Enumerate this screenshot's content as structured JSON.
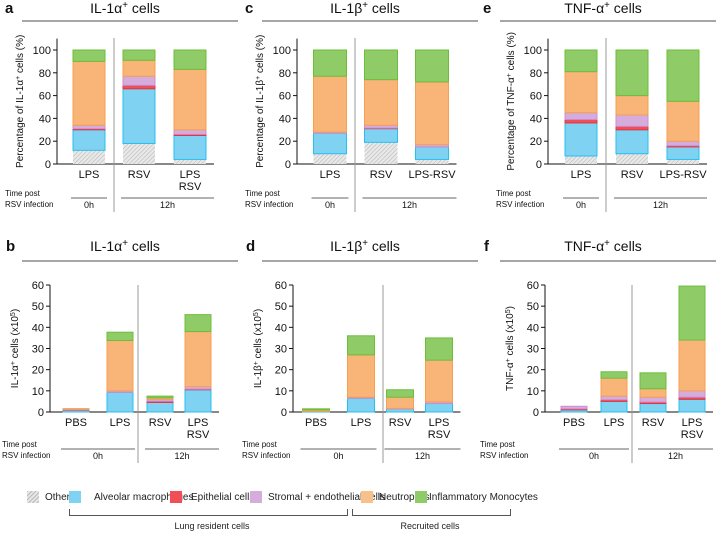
{
  "legend": {
    "items": [
      {
        "label": "Other",
        "color": "#d8d8d8"
      },
      {
        "label": "Alveolar macrophages",
        "color": "#7fd2f2"
      },
      {
        "label": "Epithelial cells",
        "color": "#ef4f55"
      },
      {
        "label": "Stromal + endothelial cells",
        "color": "#d6acdd"
      },
      {
        "label": "Neutrophils",
        "color": "#f9b477"
      },
      {
        "label": "Inflammatory Monocytes",
        "color": "#8fcc68"
      }
    ],
    "groups": [
      "Lung resident cells",
      "Recruited cells"
    ]
  },
  "stroke_colors": [
    "#b8b8b8",
    "#27bfee",
    "#e8343d",
    "#c68fd0",
    "#f6a052",
    "#6dbd3a"
  ],
  "time_labels": {
    "line1": "Time post",
    "line2": "RSV infection",
    "t0": "0h",
    "t12": "12h"
  },
  "chart_data": [
    {
      "panel": "a",
      "type": "bar",
      "stacked": true,
      "title": [
        {
          "t": "IL-1α"
        },
        {
          "t": "+",
          "sup": true
        },
        {
          "t": " cells"
        }
      ],
      "ylabel": [
        {
          "t": "Percentage of IL-1α"
        },
        {
          "t": "+",
          "sup": true
        },
        {
          "t": " cells (%)"
        }
      ],
      "categories": [
        "LPS",
        "RSV",
        "LPS RSV"
      ],
      "time_groups": [
        "0h",
        "12h",
        "12h"
      ],
      "ylim": [
        0,
        110
      ],
      "yticks": [
        0,
        20,
        40,
        60,
        80,
        100
      ],
      "series": [
        {
          "name": "Other",
          "values": [
            12,
            18,
            4
          ]
        },
        {
          "name": "Alveolar macrophages",
          "values": [
            18,
            48,
            21
          ]
        },
        {
          "name": "Epithelial cells",
          "values": [
            1,
            3,
            1
          ]
        },
        {
          "name": "Stromal + endothelial cells",
          "values": [
            3,
            8,
            4
          ]
        },
        {
          "name": "Neutrophils",
          "values": [
            56,
            14,
            53
          ]
        },
        {
          "name": "Inflammatory Monocytes",
          "values": [
            10,
            9,
            17
          ]
        }
      ]
    },
    {
      "panel": "c",
      "type": "bar",
      "stacked": true,
      "title": [
        {
          "t": "IL-1β"
        },
        {
          "t": "+",
          "sup": true
        },
        {
          "t": " cells"
        }
      ],
      "ylabel": [
        {
          "t": "Percentage of IL-1β"
        },
        {
          "t": "+",
          "sup": true
        },
        {
          "t": " cells (%)"
        }
      ],
      "categories": [
        "LPS",
        "RSV",
        "LPS-RSV"
      ],
      "time_groups": [
        "0h",
        "12h",
        "12h"
      ],
      "ylim": [
        0,
        110
      ],
      "yticks": [
        0,
        20,
        40,
        60,
        80,
        100
      ],
      "series": [
        {
          "name": "Other",
          "values": [
            9,
            19,
            4
          ]
        },
        {
          "name": "Alveolar macrophages",
          "values": [
            18,
            12,
            11
          ]
        },
        {
          "name": "Epithelial cells",
          "values": [
            0,
            0.5,
            0
          ]
        },
        {
          "name": "Stromal + endothelial cells",
          "values": [
            1,
            2.5,
            2
          ]
        },
        {
          "name": "Neutrophils",
          "values": [
            49,
            40,
            55
          ]
        },
        {
          "name": "Inflammatory Monocytes",
          "values": [
            23,
            26,
            28
          ]
        }
      ]
    },
    {
      "panel": "e",
      "type": "bar",
      "stacked": true,
      "title": [
        {
          "t": "TNF-α"
        },
        {
          "t": "+",
          "sup": true
        },
        {
          "t": " cells"
        }
      ],
      "ylabel": [
        {
          "t": "Percentage of TNF-α"
        },
        {
          "t": "+",
          "sup": true
        },
        {
          "t": " cells (%)"
        }
      ],
      "categories": [
        "LPS",
        "RSV",
        "LPS-RSV"
      ],
      "time_groups": [
        "0h",
        "12h",
        "12h"
      ],
      "ylim": [
        0,
        110
      ],
      "yticks": [
        0,
        20,
        40,
        60,
        80,
        100
      ],
      "series": [
        {
          "name": "Other",
          "values": [
            7,
            9,
            4
          ]
        },
        {
          "name": "Alveolar macrophages",
          "values": [
            29,
            21,
            11
          ]
        },
        {
          "name": "Epithelial cells",
          "values": [
            3,
            3,
            1
          ]
        },
        {
          "name": "Stromal + endothelial cells",
          "values": [
            6,
            10,
            4
          ]
        },
        {
          "name": "Neutrophils",
          "values": [
            36,
            17,
            35
          ]
        },
        {
          "name": "Inflammatory Monocytes",
          "values": [
            19,
            40,
            45
          ]
        }
      ]
    },
    {
      "panel": "b",
      "type": "bar",
      "stacked": true,
      "title": [
        {
          "t": "IL-1α"
        },
        {
          "t": "+",
          "sup": true
        },
        {
          "t": " cells"
        }
      ],
      "ylabel": [
        {
          "t": "IL-1α"
        },
        {
          "t": "+",
          "sup": true
        },
        {
          "t": " cells (x10"
        },
        {
          "t": "5",
          "sup": true
        },
        {
          "t": ")"
        }
      ],
      "categories": [
        "PBS",
        "LPS",
        "RSV",
        "LPS RSV"
      ],
      "time_groups": [
        "0h",
        "0h",
        "12h",
        "12h"
      ],
      "ylim": [
        0,
        60
      ],
      "yticks": [
        0,
        10,
        20,
        30,
        40,
        50,
        60
      ],
      "series": [
        {
          "name": "Other",
          "values": [
            0,
            0,
            0,
            0
          ]
        },
        {
          "name": "Alveolar macrophages",
          "values": [
            1.0,
            9.3,
            4.5,
            10.5
          ]
        },
        {
          "name": "Epithelial cells",
          "values": [
            0.1,
            0,
            0.6,
            0.3
          ]
        },
        {
          "name": "Stromal + endothelial cells",
          "values": [
            0.2,
            0.7,
            0.9,
            1.2
          ]
        },
        {
          "name": "Neutrophils",
          "values": [
            0.3,
            23.8,
            0.7,
            26
          ]
        },
        {
          "name": "Inflammatory Monocytes",
          "values": [
            0,
            3.9,
            0.8,
            8
          ]
        }
      ]
    },
    {
      "panel": "d",
      "type": "bar",
      "stacked": true,
      "title": [
        {
          "t": "IL-1β"
        },
        {
          "t": "+",
          "sup": true
        },
        {
          "t": " cells"
        }
      ],
      "ylabel": [
        {
          "t": "IL-1β"
        },
        {
          "t": "+",
          "sup": true
        },
        {
          "t": " cells (x10"
        },
        {
          "t": "5",
          "sup": true
        },
        {
          "t": ")"
        }
      ],
      "categories": [
        "PBS",
        "LPS",
        "RSV",
        "LPS RSV"
      ],
      "time_groups": [
        "0h",
        "0h",
        "12h",
        "12h"
      ],
      "ylim": [
        0,
        60
      ],
      "yticks": [
        0,
        10,
        20,
        30,
        40,
        50,
        60
      ],
      "series": [
        {
          "name": "Other",
          "values": [
            0,
            0,
            0,
            0
          ]
        },
        {
          "name": "Alveolar macrophages",
          "values": [
            0.3,
            6.5,
            1.5,
            4
          ]
        },
        {
          "name": "Epithelial cells",
          "values": [
            0,
            0,
            0,
            0
          ]
        },
        {
          "name": "Stromal + endothelial cells",
          "values": [
            0,
            0.5,
            0.2,
            0.8
          ]
        },
        {
          "name": "Neutrophils",
          "values": [
            0.7,
            20,
            5.3,
            19.7
          ]
        },
        {
          "name": "Inflammatory Monocytes",
          "values": [
            0.5,
            9,
            3.5,
            10.5
          ]
        }
      ]
    },
    {
      "panel": "f",
      "type": "bar",
      "stacked": true,
      "title": [
        {
          "t": "TNF-α"
        },
        {
          "t": "+",
          "sup": true
        },
        {
          "t": " cells"
        }
      ],
      "ylabel": [
        {
          "t": "TNF-α"
        },
        {
          "t": "+",
          "sup": true
        },
        {
          "t": " cells (x10"
        },
        {
          "t": "5",
          "sup": true
        },
        {
          "t": ")"
        }
      ],
      "categories": [
        "PBS",
        "LPS",
        "RSV",
        "LPS RSV"
      ],
      "time_groups": [
        "0h",
        "0h",
        "12h",
        "12h"
      ],
      "ylim": [
        0,
        60
      ],
      "yticks": [
        0,
        10,
        20,
        30,
        40,
        50,
        60
      ],
      "series": [
        {
          "name": "Other",
          "values": [
            0,
            0,
            0,
            0
          ]
        },
        {
          "name": "Alveolar macrophages",
          "values": [
            1,
            5,
            4,
            6
          ]
        },
        {
          "name": "Epithelial cells",
          "values": [
            0.5,
            0.8,
            0.7,
            1
          ]
        },
        {
          "name": "Stromal + endothelial cells",
          "values": [
            1.2,
            1.7,
            2.3,
            3
          ]
        },
        {
          "name": "Neutrophils",
          "values": [
            0,
            8.5,
            4,
            24
          ]
        },
        {
          "name": "Inflammatory Monocytes",
          "values": [
            0,
            3,
            7.5,
            25.5
          ]
        }
      ]
    }
  ]
}
